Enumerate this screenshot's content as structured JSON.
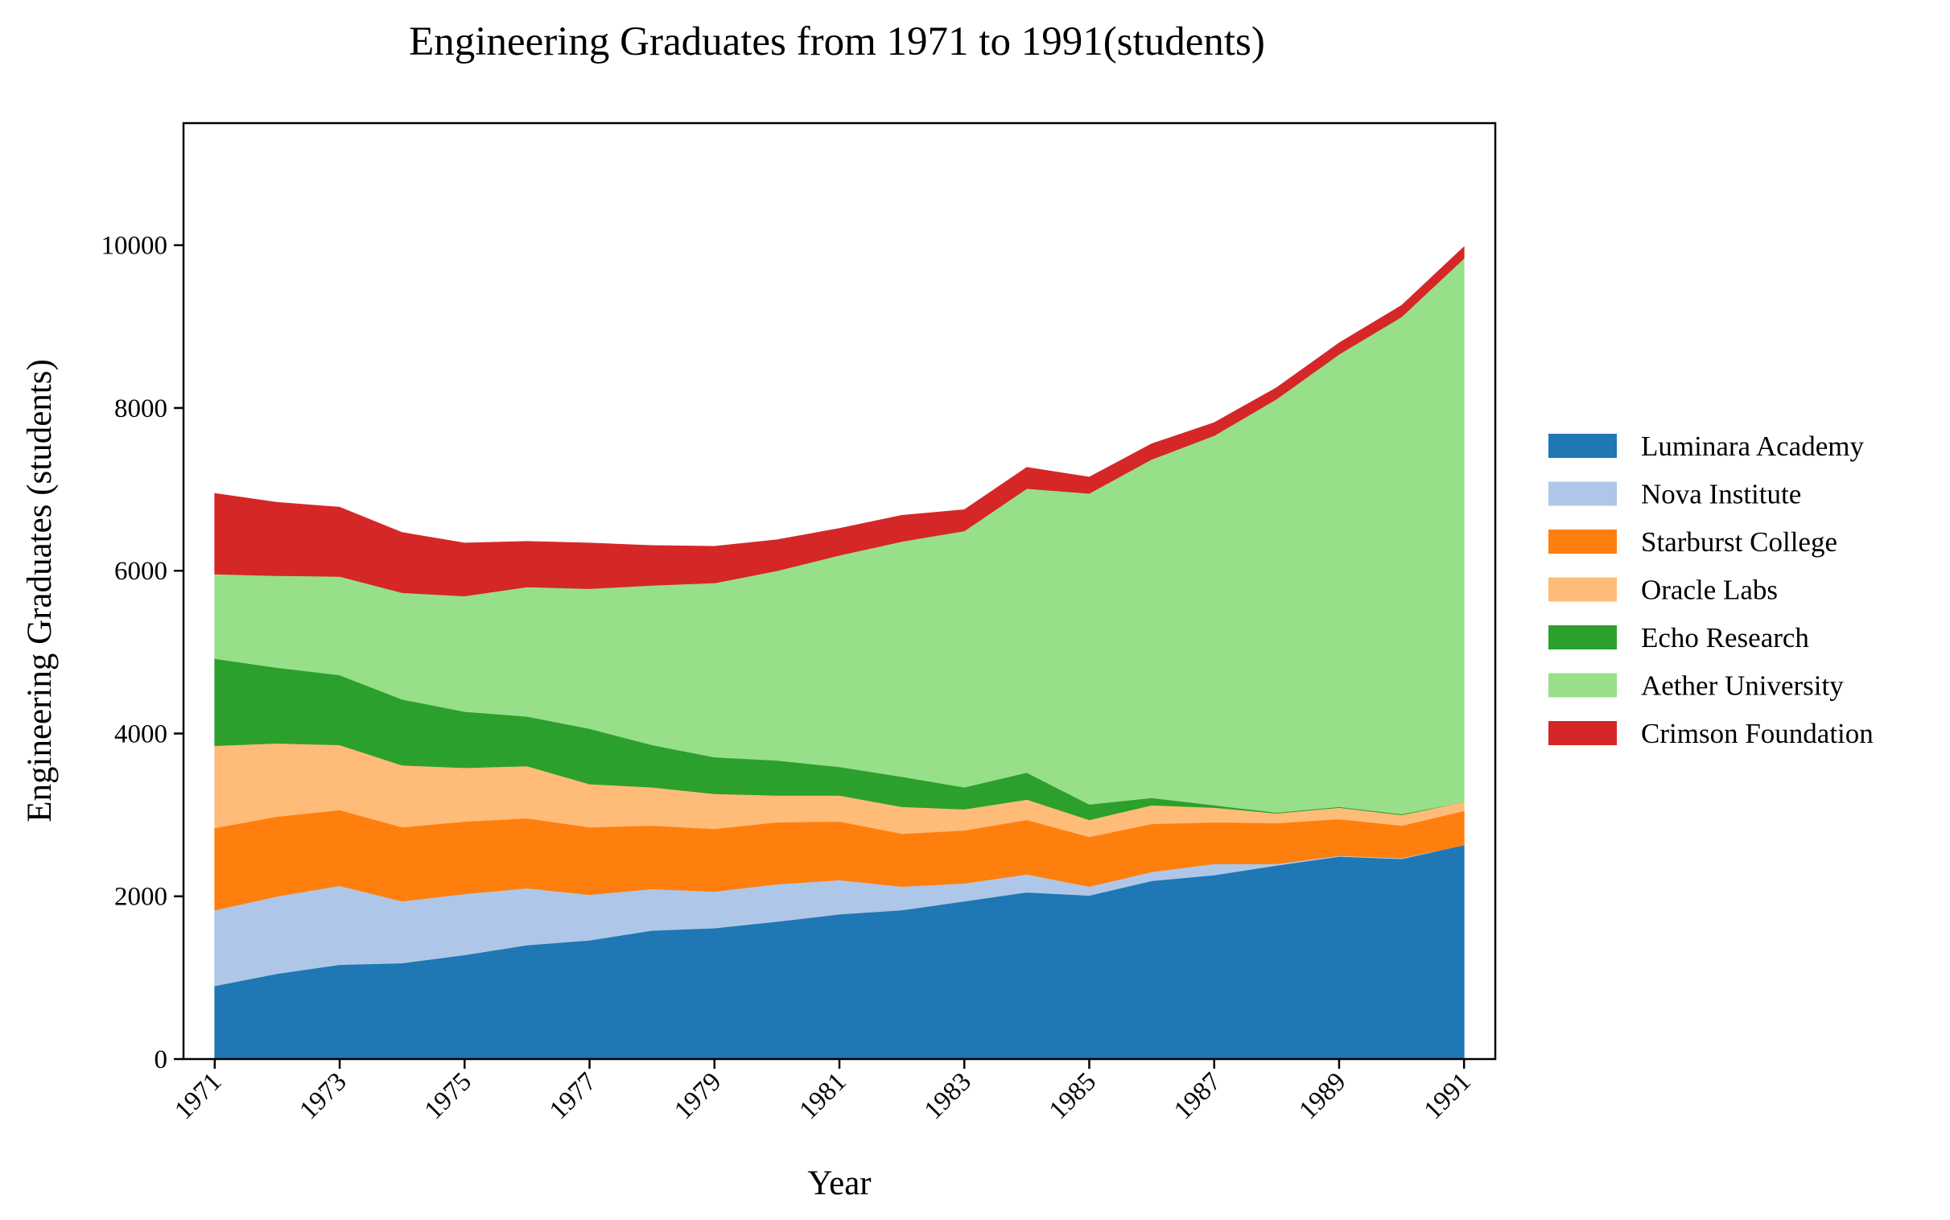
{
  "chart_data": {
    "type": "area",
    "stacked": true,
    "title": "Engineering Graduates from 1971 to 1991(students)",
    "xlabel": "Year",
    "ylabel": "Engineering Graduates (students)",
    "x": [
      1971,
      1972,
      1973,
      1974,
      1975,
      1976,
      1977,
      1978,
      1979,
      1980,
      1981,
      1982,
      1983,
      1984,
      1985,
      1986,
      1987,
      1988,
      1989,
      1990,
      1991
    ],
    "xticks": [
      "1971",
      "1973",
      "1975",
      "1977",
      "1979",
      "1981",
      "1983",
      "1985",
      "1987",
      "1989",
      "1991"
    ],
    "yticks": [
      "0",
      "2000",
      "4000",
      "6000",
      "8000",
      "10000"
    ],
    "xlim": [
      1970.5,
      1991.5
    ],
    "ylim": [
      0,
      11500
    ],
    "grid": false,
    "legend": "right",
    "series": [
      {
        "name": "Luminara Academy",
        "color": "#1f77b4",
        "values": [
          900,
          1050,
          1160,
          1180,
          1280,
          1400,
          1460,
          1580,
          1610,
          1690,
          1780,
          1830,
          1940,
          2050,
          2010,
          2190,
          2260,
          2380,
          2490,
          2460,
          2630
        ]
      },
      {
        "name": "Nova Institute",
        "color": "#aec7e8",
        "values": [
          930,
          950,
          970,
          760,
          750,
          700,
          560,
          510,
          450,
          460,
          420,
          290,
          220,
          220,
          110,
          110,
          140,
          20,
          10,
          10,
          0
        ]
      },
      {
        "name": "Starburst College",
        "color": "#ff7f0e",
        "values": [
          1010,
          980,
          930,
          910,
          890,
          860,
          830,
          780,
          770,
          760,
          720,
          650,
          650,
          670,
          610,
          590,
          510,
          500,
          450,
          400,
          420
        ]
      },
      {
        "name": "Oracle Labs",
        "color": "#ffbb78",
        "values": [
          1010,
          900,
          800,
          760,
          660,
          640,
          530,
          470,
          430,
          330,
          320,
          330,
          260,
          250,
          210,
          230,
          180,
          120,
          140,
          130,
          110
        ]
      },
      {
        "name": "Echo Research",
        "color": "#2ca02c",
        "values": [
          1070,
          930,
          860,
          810,
          690,
          610,
          680,
          520,
          450,
          430,
          350,
          370,
          270,
          330,
          190,
          90,
          30,
          10,
          10,
          10,
          0
        ]
      },
      {
        "name": "Aether University",
        "color": "#98df8a",
        "values": [
          1040,
          1130,
          1210,
          1310,
          1420,
          1590,
          1720,
          1960,
          2140,
          2330,
          2600,
          2890,
          3150,
          3490,
          3820,
          4160,
          4540,
          5080,
          5560,
          6110,
          6680
        ]
      },
      {
        "name": "Crimson Foundation",
        "color": "#d62728",
        "values": [
          990,
          900,
          850,
          740,
          650,
          560,
          560,
          490,
          450,
          380,
          330,
          320,
          260,
          260,
          200,
          190,
          160,
          140,
          140,
          140,
          140
        ]
      }
    ]
  }
}
